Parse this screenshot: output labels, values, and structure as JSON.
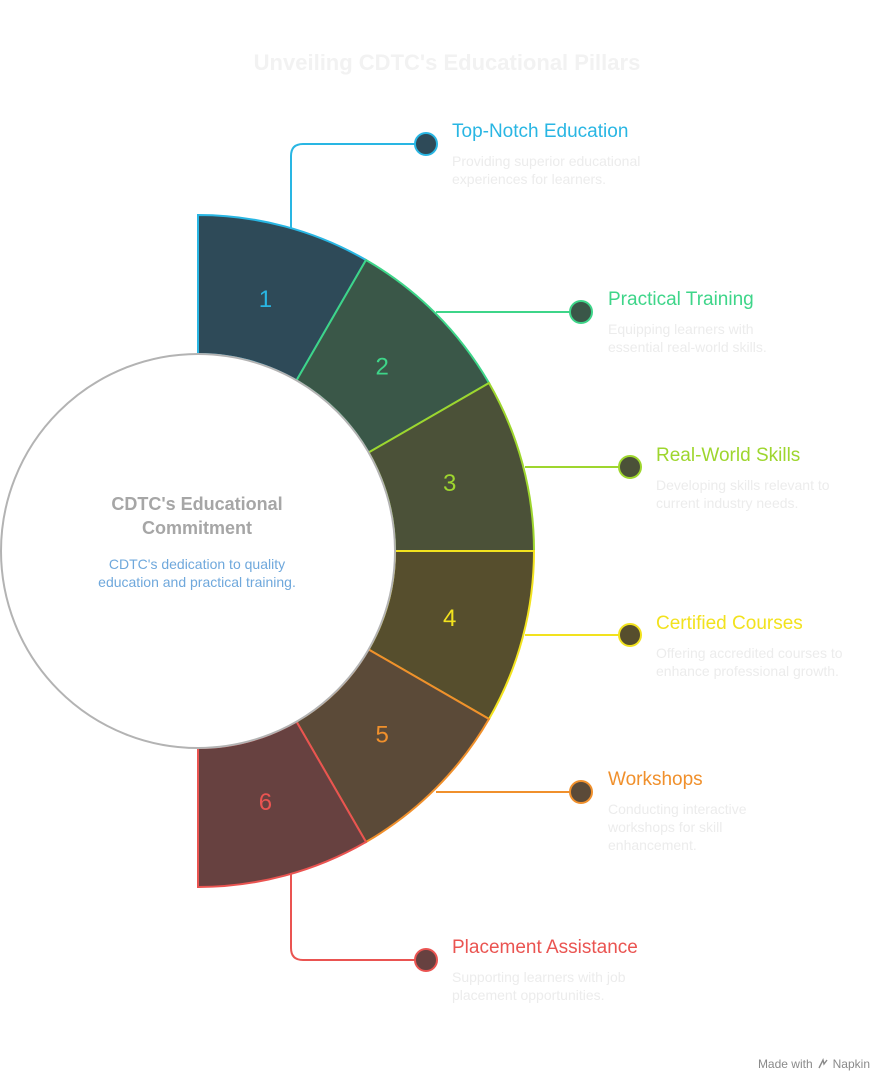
{
  "title": "Unveiling CDTC's Educational Pillars",
  "center": {
    "title": "CDTC's Educational Commitment",
    "description": "CDTC's dedication to quality education and practical training."
  },
  "items": [
    {
      "number": "1",
      "title": "Top-Notch Education",
      "description": "Providing superior educational experiences for learners.",
      "color": "#29b6e3",
      "fill": "#2e4a58"
    },
    {
      "number": "2",
      "title": "Practical Training",
      "description": "Equipping learners with essential real-world skills.",
      "color": "#3ed589",
      "fill": "#3a5748"
    },
    {
      "number": "3",
      "title": "Real-World Skills",
      "description": "Developing skills relevant to current industry needs.",
      "color": "#9ed62e",
      "fill": "#4b5138"
    },
    {
      "number": "4",
      "title": "Certified Courses",
      "description": "Offering accredited courses to enhance professional growth.",
      "color": "#f2e21e",
      "fill": "#564e2d"
    },
    {
      "number": "5",
      "title": "Workshops",
      "description": "Conducting interactive workshops for skill enhancement.",
      "color": "#f0902c",
      "fill": "#5b4a38"
    },
    {
      "number": "6",
      "title": "Placement Assistance",
      "description": "Supporting learners with job placement opportunities.",
      "color": "#ea5451",
      "fill": "#674140"
    }
  ],
  "colors": {
    "center_outline": "#b3b3b3"
  },
  "credit": {
    "text": "Made with",
    "brand": "Napkin",
    "icon": "napkin-logo-icon"
  }
}
